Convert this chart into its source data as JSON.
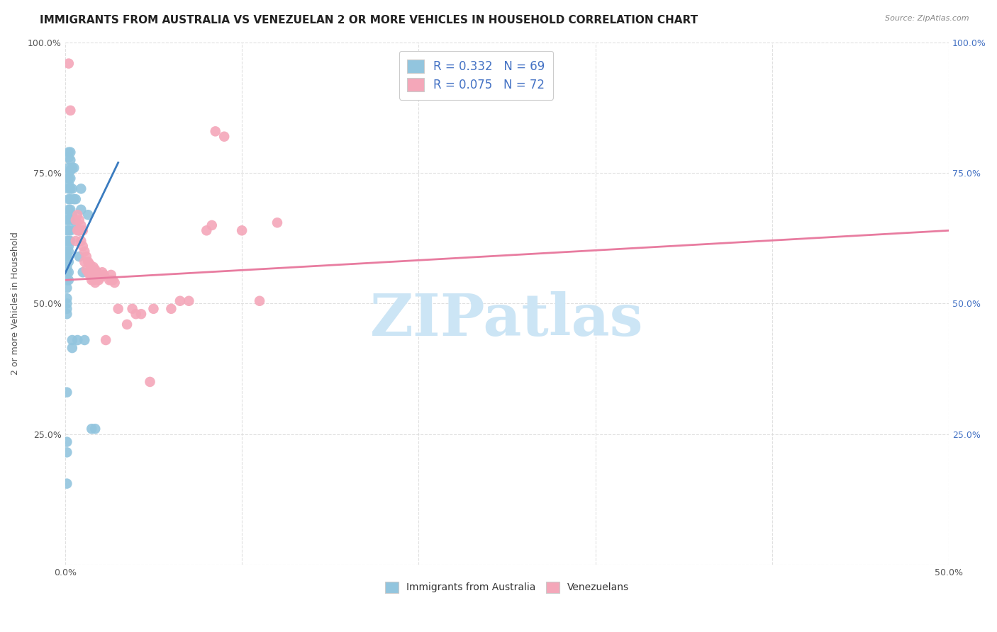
{
  "title": "IMMIGRANTS FROM AUSTRALIA VS VENEZUELAN 2 OR MORE VEHICLES IN HOUSEHOLD CORRELATION CHART",
  "source": "Source: ZipAtlas.com",
  "ylabel": "2 or more Vehicles in Household",
  "xlim": [
    0.0,
    0.5
  ],
  "ylim": [
    0.0,
    1.0
  ],
  "xticks": [
    0.0,
    0.1,
    0.2,
    0.3,
    0.4,
    0.5
  ],
  "xticklabels": [
    "0.0%",
    "",
    "",
    "",
    "",
    "50.0%"
  ],
  "yticks": [
    0.0,
    0.25,
    0.5,
    0.75,
    1.0
  ],
  "ytick_labels_left": [
    "",
    "25.0%",
    "50.0%",
    "75.0%",
    "100.0%"
  ],
  "ytick_labels_right": [
    "",
    "25.0%",
    "50.0%",
    "75.0%",
    "100.0%"
  ],
  "blue_R": "R = 0.332",
  "blue_N": "N = 69",
  "pink_R": "R = 0.075",
  "pink_N": "N = 72",
  "legend_labels": [
    "Immigrants from Australia",
    "Venezuelans"
  ],
  "blue_color": "#92c5de",
  "pink_color": "#f4a7b9",
  "blue_line_color": "#3a7bbf",
  "pink_line_color": "#e87ca0",
  "blue_scatter": [
    [
      0.001,
      0.595
    ],
    [
      0.001,
      0.62
    ],
    [
      0.001,
      0.64
    ],
    [
      0.001,
      0.66
    ],
    [
      0.001,
      0.59
    ],
    [
      0.001,
      0.57
    ],
    [
      0.001,
      0.56
    ],
    [
      0.001,
      0.545
    ],
    [
      0.001,
      0.53
    ],
    [
      0.001,
      0.51
    ],
    [
      0.001,
      0.5
    ],
    [
      0.001,
      0.49
    ],
    [
      0.001,
      0.48
    ],
    [
      0.001,
      0.33
    ],
    [
      0.001,
      0.235
    ],
    [
      0.001,
      0.215
    ],
    [
      0.001,
      0.155
    ],
    [
      0.002,
      0.79
    ],
    [
      0.002,
      0.78
    ],
    [
      0.002,
      0.76
    ],
    [
      0.002,
      0.75
    ],
    [
      0.002,
      0.74
    ],
    [
      0.002,
      0.73
    ],
    [
      0.002,
      0.72
    ],
    [
      0.002,
      0.7
    ],
    [
      0.002,
      0.68
    ],
    [
      0.002,
      0.67
    ],
    [
      0.002,
      0.66
    ],
    [
      0.002,
      0.64
    ],
    [
      0.002,
      0.62
    ],
    [
      0.002,
      0.61
    ],
    [
      0.002,
      0.6
    ],
    [
      0.002,
      0.58
    ],
    [
      0.002,
      0.56
    ],
    [
      0.002,
      0.545
    ],
    [
      0.003,
      0.79
    ],
    [
      0.003,
      0.775
    ],
    [
      0.003,
      0.755
    ],
    [
      0.003,
      0.74
    ],
    [
      0.003,
      0.72
    ],
    [
      0.003,
      0.7
    ],
    [
      0.003,
      0.68
    ],
    [
      0.003,
      0.66
    ],
    [
      0.003,
      0.64
    ],
    [
      0.003,
      0.62
    ],
    [
      0.004,
      0.76
    ],
    [
      0.004,
      0.72
    ],
    [
      0.004,
      0.67
    ],
    [
      0.004,
      0.43
    ],
    [
      0.004,
      0.415
    ],
    [
      0.005,
      0.76
    ],
    [
      0.005,
      0.7
    ],
    [
      0.006,
      0.7
    ],
    [
      0.006,
      0.655
    ],
    [
      0.007,
      0.43
    ],
    [
      0.008,
      0.64
    ],
    [
      0.008,
      0.59
    ],
    [
      0.009,
      0.72
    ],
    [
      0.009,
      0.68
    ],
    [
      0.01,
      0.56
    ],
    [
      0.011,
      0.43
    ],
    [
      0.013,
      0.67
    ],
    [
      0.015,
      0.26
    ],
    [
      0.017,
      0.26
    ]
  ],
  "pink_scatter": [
    [
      0.002,
      0.96
    ],
    [
      0.003,
      0.87
    ],
    [
      0.006,
      0.66
    ],
    [
      0.006,
      0.62
    ],
    [
      0.007,
      0.67
    ],
    [
      0.007,
      0.64
    ],
    [
      0.008,
      0.66
    ],
    [
      0.008,
      0.64
    ],
    [
      0.009,
      0.65
    ],
    [
      0.009,
      0.62
    ],
    [
      0.01,
      0.64
    ],
    [
      0.01,
      0.61
    ],
    [
      0.011,
      0.6
    ],
    [
      0.011,
      0.58
    ],
    [
      0.012,
      0.59
    ],
    [
      0.012,
      0.565
    ],
    [
      0.013,
      0.58
    ],
    [
      0.013,
      0.56
    ],
    [
      0.014,
      0.575
    ],
    [
      0.014,
      0.555
    ],
    [
      0.015,
      0.565
    ],
    [
      0.015,
      0.545
    ],
    [
      0.016,
      0.57
    ],
    [
      0.016,
      0.545
    ],
    [
      0.017,
      0.565
    ],
    [
      0.017,
      0.54
    ],
    [
      0.018,
      0.56
    ],
    [
      0.018,
      0.555
    ],
    [
      0.019,
      0.555
    ],
    [
      0.019,
      0.545
    ],
    [
      0.02,
      0.55
    ],
    [
      0.021,
      0.56
    ],
    [
      0.022,
      0.555
    ],
    [
      0.023,
      0.43
    ],
    [
      0.025,
      0.545
    ],
    [
      0.026,
      0.545
    ],
    [
      0.026,
      0.555
    ],
    [
      0.027,
      0.545
    ],
    [
      0.028,
      0.54
    ],
    [
      0.03,
      0.49
    ],
    [
      0.035,
      0.46
    ],
    [
      0.038,
      0.49
    ],
    [
      0.04,
      0.48
    ],
    [
      0.043,
      0.48
    ],
    [
      0.048,
      0.35
    ],
    [
      0.05,
      0.49
    ],
    [
      0.06,
      0.49
    ],
    [
      0.065,
      0.505
    ],
    [
      0.07,
      0.505
    ],
    [
      0.08,
      0.64
    ],
    [
      0.083,
      0.65
    ],
    [
      0.085,
      0.83
    ],
    [
      0.09,
      0.82
    ],
    [
      0.1,
      0.64
    ],
    [
      0.11,
      0.505
    ],
    [
      0.12,
      0.655
    ]
  ],
  "blue_line": [
    [
      0.0,
      0.558
    ],
    [
      0.03,
      0.77
    ]
  ],
  "pink_line": [
    [
      0.0,
      0.545
    ],
    [
      0.5,
      0.64
    ]
  ],
  "watermark": "ZIPatlas",
  "watermark_color": "#cce5f5",
  "background_color": "#ffffff",
  "grid_color": "#dddddd",
  "title_fontsize": 11,
  "axis_label_fontsize": 9,
  "tick_fontsize": 9,
  "legend_fontsize": 12,
  "right_tick_color": "#4472c4"
}
